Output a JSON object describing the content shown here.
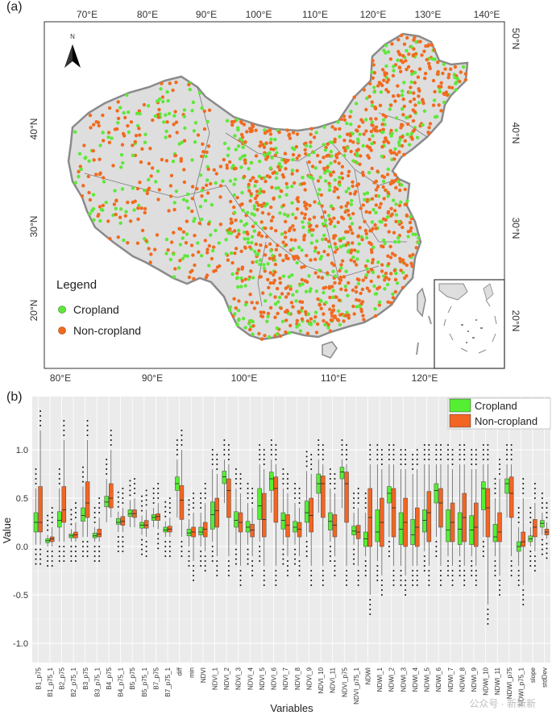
{
  "panel_a": {
    "label": "(a)",
    "north_label": "N",
    "top_lon_ticks": [
      "70°E",
      "80°E",
      "90°E",
      "100°E",
      "110°E",
      "120°E",
      "130°E",
      "140°E"
    ],
    "bottom_lon_ticks": [
      "80°E",
      "90°E",
      "100°E",
      "110°E",
      "120°E"
    ],
    "left_lat_ticks": [
      "40°N",
      "30°N",
      "20°N"
    ],
    "right_lat_ticks": [
      "50°N",
      "40°N",
      "30°N",
      "20°N"
    ],
    "legend_title": "Legend",
    "legend_items": [
      {
        "label": "Cropland",
        "color": "#5ee83a"
      },
      {
        "label": "Non-cropland",
        "color": "#f06b20"
      }
    ]
  },
  "panel_b": {
    "label": "(b)",
    "watermark": "公众号 · 新新新"
  },
  "chart_data": {
    "type": "box",
    "title": "",
    "xlabel": "Variables",
    "ylabel": "Value",
    "ylim": [
      -1.2,
      1.55
    ],
    "yticks": [
      -1.0,
      -0.5,
      0.0,
      0.5,
      1.0
    ],
    "ytick_labels": [
      "-1.0",
      "-0.5",
      "0.0",
      "0.5",
      "1.0"
    ],
    "legend": [
      {
        "name": "Cropland",
        "color": "#55ee33"
      },
      {
        "name": "Non-cropland",
        "color": "#f26522"
      }
    ],
    "categories": [
      "B1_p75",
      "B1_p75_1",
      "B2_p75",
      "B2_p75_1",
      "B3_p75",
      "B3_p75_1",
      "B4_p75",
      "B4_p75_1",
      "B5_p75",
      "B5_p75_1",
      "B7_p75",
      "B7_p75_1",
      "diff",
      "min",
      "NDVI",
      "NDVI_1",
      "NDVI_2",
      "NDVI_3",
      "NDVI_4",
      "NDVI_5",
      "NDVI_6",
      "NDVI_7",
      "NDVI_8",
      "NDVI_9",
      "NDVI_10",
      "NDVI_11",
      "NDVI_p75",
      "NDVI_p75_1",
      "NDWI",
      "NDWI_1",
      "NDWI_2",
      "NDWI_3",
      "NDWI_4",
      "NDWI_5",
      "NDWI_6",
      "NDWI_7",
      "NDWI_8",
      "NDWI_9",
      "NDWI_10",
      "NDWI_11",
      "NDWI_p75",
      "NDWI_p75_1",
      "slope",
      "stdDev"
    ],
    "series": [
      {
        "name": "Cropland",
        "boxes": [
          [
            0.02,
            0.15,
            0.25,
            0.35,
            0.6
          ],
          [
            0.0,
            0.04,
            0.06,
            0.08,
            0.12
          ],
          [
            0.05,
            0.2,
            0.27,
            0.36,
            0.6
          ],
          [
            0.05,
            0.09,
            0.11,
            0.13,
            0.18
          ],
          [
            0.1,
            0.26,
            0.32,
            0.4,
            0.62
          ],
          [
            0.05,
            0.09,
            0.11,
            0.14,
            0.2
          ],
          [
            0.25,
            0.41,
            0.46,
            0.52,
            0.7
          ],
          [
            0.15,
            0.23,
            0.25,
            0.29,
            0.36
          ],
          [
            0.2,
            0.31,
            0.34,
            0.38,
            0.48
          ],
          [
            0.12,
            0.19,
            0.22,
            0.25,
            0.32
          ],
          [
            0.2,
            0.27,
            0.3,
            0.33,
            0.4
          ],
          [
            0.1,
            0.15,
            0.17,
            0.2,
            0.26
          ],
          [
            0.3,
            0.58,
            0.65,
            0.72,
            0.9
          ],
          [
            0.0,
            0.11,
            0.14,
            0.18,
            0.28
          ],
          [
            0.0,
            0.12,
            0.15,
            0.2,
            0.35
          ],
          [
            0.05,
            0.18,
            0.33,
            0.46,
            0.8
          ],
          [
            0.45,
            0.65,
            0.72,
            0.78,
            0.9
          ],
          [
            0.02,
            0.2,
            0.27,
            0.36,
            0.6
          ],
          [
            0.02,
            0.15,
            0.2,
            0.26,
            0.45
          ],
          [
            0.05,
            0.28,
            0.42,
            0.6,
            0.85
          ],
          [
            0.35,
            0.58,
            0.7,
            0.77,
            0.9
          ],
          [
            0.02,
            0.18,
            0.27,
            0.35,
            0.6
          ],
          [
            0.02,
            0.15,
            0.2,
            0.26,
            0.45
          ],
          [
            0.1,
            0.25,
            0.35,
            0.47,
            0.78
          ],
          [
            0.35,
            0.55,
            0.65,
            0.75,
            0.9
          ],
          [
            0.05,
            0.17,
            0.26,
            0.35,
            0.6
          ],
          [
            0.4,
            0.7,
            0.77,
            0.82,
            0.9
          ],
          [
            0.02,
            0.12,
            0.16,
            0.21,
            0.35
          ],
          [
            -0.1,
            0.0,
            0.08,
            0.15,
            0.35
          ],
          [
            -0.15,
            0.05,
            0.15,
            0.38,
            0.85
          ],
          [
            0.1,
            0.45,
            0.55,
            0.62,
            0.85
          ],
          [
            -0.2,
            0.02,
            0.18,
            0.35,
            0.8
          ],
          [
            -0.2,
            0.02,
            0.12,
            0.28,
            0.75
          ],
          [
            -0.05,
            0.15,
            0.27,
            0.38,
            0.85
          ],
          [
            0.1,
            0.45,
            0.58,
            0.65,
            0.85
          ],
          [
            -0.1,
            0.05,
            0.17,
            0.38,
            0.85
          ],
          [
            -0.1,
            0.02,
            0.18,
            0.35,
            0.85
          ],
          [
            -0.1,
            0.02,
            0.17,
            0.32,
            0.8
          ],
          [
            0.1,
            0.38,
            0.6,
            0.67,
            0.85
          ],
          [
            -0.1,
            0.05,
            0.1,
            0.23,
            0.5
          ],
          [
            0.3,
            0.55,
            0.65,
            0.7,
            0.85
          ],
          [
            -0.2,
            -0.05,
            0.0,
            0.05,
            0.2
          ],
          [
            0.0,
            0.05,
            0.08,
            0.11,
            0.2
          ],
          [
            0.12,
            0.2,
            0.24,
            0.27,
            0.35
          ]
        ]
      },
      {
        "name": "Non-cropland",
        "boxes": [
          [
            0.02,
            0.15,
            0.25,
            0.62,
            1.2
          ],
          [
            0.0,
            0.05,
            0.08,
            0.1,
            0.2
          ],
          [
            0.05,
            0.25,
            0.38,
            0.62,
            1.1
          ],
          [
            0.05,
            0.09,
            0.12,
            0.15,
            0.25
          ],
          [
            0.1,
            0.3,
            0.45,
            0.67,
            1.1
          ],
          [
            0.05,
            0.1,
            0.13,
            0.18,
            0.3
          ],
          [
            0.3,
            0.4,
            0.5,
            0.65,
            1.0
          ],
          [
            0.15,
            0.22,
            0.26,
            0.31,
            0.4
          ],
          [
            0.2,
            0.3,
            0.34,
            0.38,
            0.5
          ],
          [
            0.1,
            0.19,
            0.22,
            0.27,
            0.38
          ],
          [
            0.18,
            0.27,
            0.31,
            0.34,
            0.45
          ],
          [
            0.1,
            0.15,
            0.18,
            0.21,
            0.3
          ],
          [
            0.1,
            0.28,
            0.48,
            0.63,
            1.0
          ],
          [
            -0.15,
            0.1,
            0.15,
            0.2,
            0.35
          ],
          [
            -0.05,
            0.1,
            0.18,
            0.25,
            0.45
          ],
          [
            -0.1,
            0.2,
            0.37,
            0.5,
            0.75
          ],
          [
            -0.1,
            0.3,
            0.58,
            0.7,
            0.85
          ],
          [
            -0.2,
            0.15,
            0.25,
            0.35,
            0.55
          ],
          [
            -0.1,
            0.1,
            0.17,
            0.23,
            0.4
          ],
          [
            -0.2,
            0.1,
            0.28,
            0.55,
            0.8
          ],
          [
            -0.2,
            0.25,
            0.6,
            0.72,
            0.85
          ],
          [
            -0.1,
            0.1,
            0.22,
            0.33,
            0.55
          ],
          [
            -0.1,
            0.1,
            0.18,
            0.25,
            0.4
          ],
          [
            -0.2,
            0.15,
            0.32,
            0.5,
            0.75
          ],
          [
            -0.2,
            0.3,
            0.65,
            0.73,
            0.85
          ],
          [
            -0.1,
            0.1,
            0.22,
            0.33,
            0.55
          ],
          [
            -0.2,
            0.25,
            0.65,
            0.77,
            0.85
          ],
          [
            -0.2,
            0.08,
            0.15,
            0.22,
            0.4
          ],
          [
            -0.5,
            0.0,
            0.3,
            0.6,
            0.85
          ],
          [
            -0.3,
            0.0,
            0.25,
            0.5,
            0.8
          ],
          [
            -0.2,
            0.1,
            0.4,
            0.6,
            0.85
          ],
          [
            -0.3,
            0.0,
            0.25,
            0.5,
            0.8
          ],
          [
            -0.2,
            0.0,
            0.2,
            0.4,
            0.8
          ],
          [
            -0.2,
            0.05,
            0.35,
            0.57,
            0.85
          ],
          [
            -0.2,
            0.2,
            0.45,
            0.6,
            0.85
          ],
          [
            -0.2,
            0.05,
            0.25,
            0.45,
            0.8
          ],
          [
            -0.2,
            0.05,
            0.3,
            0.55,
            0.85
          ],
          [
            -0.2,
            0.0,
            0.2,
            0.45,
            0.8
          ],
          [
            -0.6,
            0.1,
            0.4,
            0.6,
            0.85
          ],
          [
            -0.3,
            0.05,
            0.15,
            0.35,
            0.7
          ],
          [
            -0.1,
            0.3,
            0.55,
            0.72,
            0.85
          ],
          [
            -0.4,
            0.0,
            0.05,
            0.15,
            0.5
          ],
          [
            -0.05,
            0.1,
            0.2,
            0.28,
            0.45
          ],
          [
            0.08,
            0.12,
            0.15,
            0.18,
            0.25
          ]
        ]
      }
    ]
  }
}
